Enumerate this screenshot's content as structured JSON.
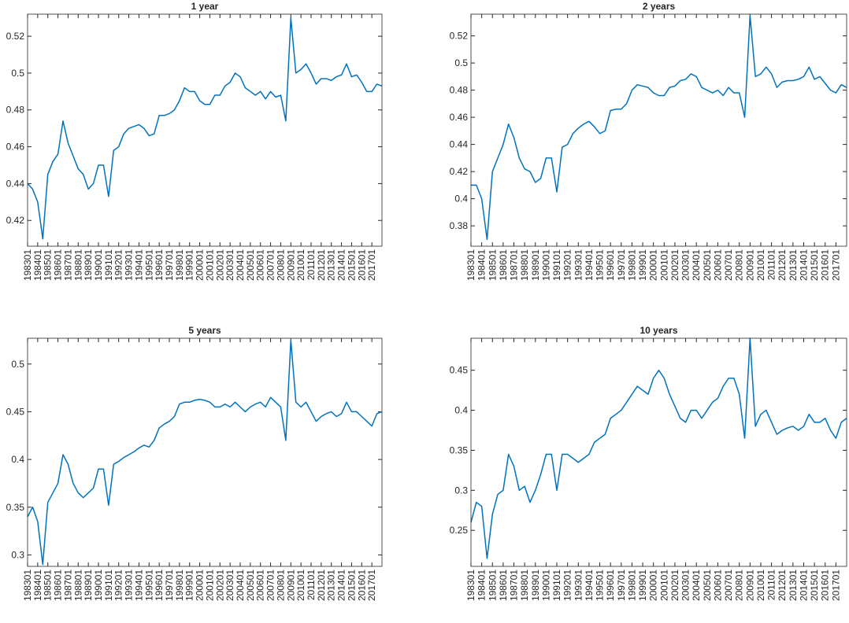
{
  "chart_data": [
    {
      "type": "line",
      "title": "1 year",
      "color": "#0072bd",
      "categories": [
        "198301",
        null,
        "198401",
        null,
        "198501",
        null,
        "198601",
        null,
        "198701",
        null,
        "198801",
        null,
        "198901",
        null,
        "199001",
        null,
        "199101",
        null,
        "199201",
        null,
        "199301",
        null,
        "199401",
        null,
        "199501",
        null,
        "199601",
        null,
        "199701",
        null,
        "199801",
        null,
        "199901",
        null,
        "200001",
        null,
        "200101",
        null,
        "200201",
        null,
        "200301",
        null,
        "200401",
        null,
        "200501",
        null,
        "200601",
        null,
        "200701",
        null,
        "200801",
        null,
        "200901",
        null,
        "201001",
        null,
        "201101",
        null,
        "201201",
        null,
        "201301",
        null,
        "201401",
        null,
        "201501",
        null,
        "201601",
        null,
        "201701",
        null,
        null
      ],
      "values": [
        0.44,
        0.437,
        0.43,
        0.41,
        0.445,
        0.452,
        0.456,
        0.474,
        0.462,
        0.455,
        0.448,
        0.445,
        0.437,
        0.44,
        0.45,
        0.45,
        0.433,
        0.458,
        0.46,
        0.467,
        0.47,
        0.471,
        0.472,
        0.47,
        0.466,
        0.467,
        0.477,
        0.477,
        0.478,
        0.48,
        0.485,
        0.492,
        0.49,
        0.49,
        0.485,
        0.483,
        0.483,
        0.488,
        0.488,
        0.493,
        0.495,
        0.5,
        0.498,
        0.492,
        0.49,
        0.488,
        0.49,
        0.486,
        0.49,
        0.487,
        0.488,
        0.474,
        0.53,
        0.5,
        0.502,
        0.505,
        0.5,
        0.494,
        0.497,
        0.497,
        0.496,
        0.498,
        0.499,
        0.505,
        0.498,
        0.499,
        0.495,
        0.49,
        0.49,
        0.494,
        0.493
      ],
      "ylim": [
        0.406,
        0.532
      ],
      "yticks": [
        0.42,
        0.44,
        0.46,
        0.48,
        0.5,
        0.52
      ]
    },
    {
      "type": "line",
      "title": "2 years",
      "color": "#0072bd",
      "categories": [
        "198301",
        null,
        "198401",
        null,
        "198501",
        null,
        "198601",
        null,
        "198701",
        null,
        "198801",
        null,
        "198901",
        null,
        "199001",
        null,
        "199101",
        null,
        "199201",
        null,
        "199301",
        null,
        "199401",
        null,
        "199501",
        null,
        "199601",
        null,
        "199701",
        null,
        "199801",
        null,
        "199901",
        null,
        "200001",
        null,
        "200101",
        null,
        "200201",
        null,
        "200301",
        null,
        "200401",
        null,
        "200501",
        null,
        "200601",
        null,
        "200701",
        null,
        "200801",
        null,
        "200901",
        null,
        "201001",
        null,
        "201101",
        null,
        "201201",
        null,
        "201301",
        null,
        "201401",
        null,
        "201501",
        null,
        "201601",
        null,
        "201701",
        null,
        null
      ],
      "values": [
        0.41,
        0.41,
        0.4,
        0.37,
        0.42,
        0.43,
        0.44,
        0.455,
        0.445,
        0.43,
        0.422,
        0.42,
        0.412,
        0.415,
        0.43,
        0.43,
        0.405,
        0.438,
        0.44,
        0.448,
        0.452,
        0.455,
        0.457,
        0.453,
        0.448,
        0.45,
        0.465,
        0.466,
        0.466,
        0.47,
        0.48,
        0.484,
        0.483,
        0.482,
        0.478,
        0.476,
        0.476,
        0.482,
        0.483,
        0.487,
        0.488,
        0.492,
        0.49,
        0.482,
        0.48,
        0.478,
        0.48,
        0.476,
        0.482,
        0.478,
        0.478,
        0.46,
        0.535,
        0.49,
        0.492,
        0.497,
        0.492,
        0.482,
        0.486,
        0.487,
        0.487,
        0.488,
        0.49,
        0.497,
        0.488,
        0.49,
        0.485,
        0.48,
        0.478,
        0.484,
        0.482
      ],
      "ylim": [
        0.365,
        0.536
      ],
      "yticks": [
        0.38,
        0.4,
        0.42,
        0.44,
        0.46,
        0.48,
        0.5,
        0.52
      ]
    },
    {
      "type": "line",
      "title": "5 years",
      "color": "#0072bd",
      "categories": [
        "198301",
        null,
        "198401",
        null,
        "198501",
        null,
        "198601",
        null,
        "198701",
        null,
        "198801",
        null,
        "198901",
        null,
        "199001",
        null,
        "199101",
        null,
        "199201",
        null,
        "199301",
        null,
        "199401",
        null,
        "199501",
        null,
        "199601",
        null,
        "199701",
        null,
        "199801",
        null,
        "199901",
        null,
        "200001",
        null,
        "200101",
        null,
        "200201",
        null,
        "200301",
        null,
        "200401",
        null,
        "200501",
        null,
        "200601",
        null,
        "200701",
        null,
        "200801",
        null,
        "200901",
        null,
        "201001",
        null,
        "201101",
        null,
        "201201",
        null,
        "201301",
        null,
        "201401",
        null,
        "201501",
        null,
        "201601",
        null,
        "201701",
        null,
        null
      ],
      "values": [
        0.34,
        0.35,
        0.335,
        0.29,
        0.355,
        0.365,
        0.375,
        0.405,
        0.395,
        0.375,
        0.365,
        0.36,
        0.365,
        0.37,
        0.39,
        0.39,
        0.352,
        0.395,
        0.398,
        0.402,
        0.405,
        0.408,
        0.412,
        0.415,
        0.413,
        0.42,
        0.433,
        0.437,
        0.44,
        0.445,
        0.458,
        0.46,
        0.46,
        0.462,
        0.463,
        0.462,
        0.46,
        0.455,
        0.455,
        0.458,
        0.455,
        0.46,
        0.455,
        0.45,
        0.455,
        0.458,
        0.46,
        0.455,
        0.465,
        0.46,
        0.455,
        0.42,
        0.525,
        0.46,
        0.455,
        0.46,
        0.45,
        0.44,
        0.445,
        0.448,
        0.45,
        0.445,
        0.448,
        0.46,
        0.45,
        0.45,
        0.445,
        0.44,
        0.435,
        0.448,
        0.45
      ],
      "ylim": [
        0.288,
        0.527
      ],
      "yticks": [
        0.3,
        0.35,
        0.4,
        0.45,
        0.5
      ]
    },
    {
      "type": "line",
      "title": "10 years",
      "color": "#0072bd",
      "categories": [
        "198301",
        null,
        "198401",
        null,
        "198501",
        null,
        "198601",
        null,
        "198701",
        null,
        "198801",
        null,
        "198901",
        null,
        "199001",
        null,
        "199101",
        null,
        "199201",
        null,
        "199301",
        null,
        "199401",
        null,
        "199501",
        null,
        "199601",
        null,
        "199701",
        null,
        "199801",
        null,
        "199901",
        null,
        "200001",
        null,
        "200101",
        null,
        "200201",
        null,
        "200301",
        null,
        "200401",
        null,
        "200501",
        null,
        "200601",
        null,
        "200701",
        null,
        "200801",
        null,
        "200901",
        null,
        "201001",
        null,
        "201101",
        null,
        "201201",
        null,
        "201301",
        null,
        "201401",
        null,
        "201501",
        null,
        "201601",
        null,
        "201701",
        null,
        null
      ],
      "values": [
        0.26,
        0.285,
        0.28,
        0.215,
        0.27,
        0.295,
        0.3,
        0.345,
        0.33,
        0.3,
        0.305,
        0.285,
        0.3,
        0.32,
        0.345,
        0.345,
        0.3,
        0.345,
        0.345,
        0.34,
        0.335,
        0.34,
        0.345,
        0.36,
        0.365,
        0.37,
        0.39,
        0.395,
        0.4,
        0.41,
        0.42,
        0.43,
        0.425,
        0.42,
        0.44,
        0.45,
        0.44,
        0.42,
        0.405,
        0.39,
        0.385,
        0.4,
        0.4,
        0.39,
        0.4,
        0.41,
        0.415,
        0.43,
        0.44,
        0.44,
        0.42,
        0.365,
        0.49,
        0.38,
        0.395,
        0.4,
        0.385,
        0.37,
        0.375,
        0.378,
        0.38,
        0.375,
        0.38,
        0.395,
        0.385,
        0.385,
        0.39,
        0.375,
        0.365,
        0.385,
        0.39
      ],
      "ylim": [
        0.205,
        0.49
      ],
      "yticks": [
        0.25,
        0.3,
        0.35,
        0.4,
        0.45
      ]
    }
  ]
}
